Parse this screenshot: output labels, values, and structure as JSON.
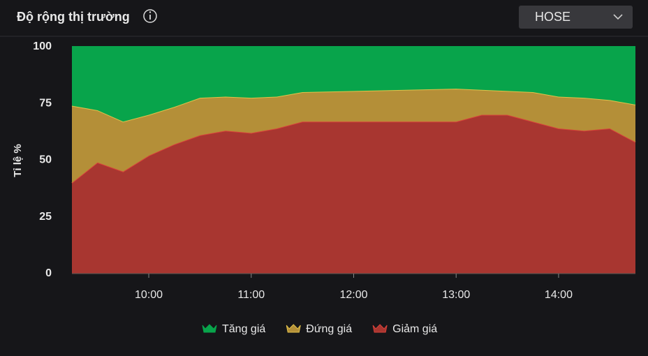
{
  "header": {
    "title": "Độ rộng thị trường",
    "exchange": "HOSE"
  },
  "chart_data": {
    "type": "stacked-area",
    "ylabel": "Tỉ lệ %",
    "x": [
      "09:15",
      "09:30",
      "09:45",
      "10:00",
      "10:15",
      "10:30",
      "10:45",
      "11:00",
      "11:15",
      "11:30",
      "13:00",
      "13:15",
      "13:30",
      "13:45",
      "14:00",
      "14:15",
      "14:30",
      "14:45"
    ],
    "xlim": [
      "09:15",
      "14:45"
    ],
    "xticks": [
      "10:00",
      "11:00",
      "12:00",
      "13:00",
      "14:00"
    ],
    "ylim": [
      0,
      100
    ],
    "yticks": [
      0,
      25,
      50,
      75,
      100
    ],
    "series": [
      {
        "name": "Giảm giá",
        "color": "#a83630",
        "line": "#d9413a",
        "values": [
          40,
          49,
          45,
          52,
          57,
          61,
          63,
          62,
          64,
          67,
          67,
          70,
          70,
          67,
          64,
          63,
          64,
          58
        ]
      },
      {
        "name": "Đứng giá",
        "color": "#b48f38",
        "line": "#e2c24a",
        "values": [
          34,
          23,
          22,
          18,
          16.5,
          16.5,
          15,
          15.5,
          14,
          13,
          14.5,
          11,
          10.5,
          13,
          14,
          14.5,
          12.5,
          16.5
        ]
      },
      {
        "name": "Tăng giá",
        "color": "#08a44b",
        "line": "#08a44b",
        "values": [
          26,
          28,
          33,
          30,
          26.5,
          22.5,
          22,
          22.5,
          22,
          20,
          18.5,
          19,
          19.5,
          20,
          22,
          22.5,
          23.5,
          25.5
        ]
      }
    ],
    "legend_order": [
      2,
      1,
      0
    ]
  }
}
